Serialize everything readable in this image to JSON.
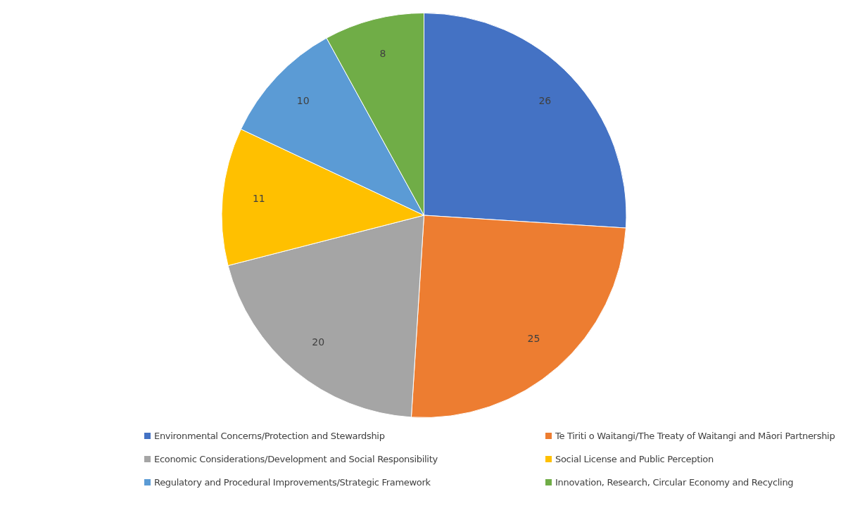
{
  "chart_data": {
    "type": "pie",
    "categories": [
      "Environmental Concerns/Protection and Stewardship",
      "Te Tiriti o Waitangi/The Treaty of Waitangi and Māori Partnership",
      "Economic Considerations/Development and Social Responsibility",
      "Social License and Public Perception",
      "Regulatory and Procedural Improvements/Strategic Framework",
      "Innovation, Research, Circular Economy and Recycling"
    ],
    "values": [
      26,
      25,
      20,
      11,
      10,
      8
    ],
    "colors": [
      "#4472c4",
      "#ed7d31",
      "#a5a5a5",
      "#ffc000",
      "#5b9bd5",
      "#70ad47"
    ],
    "data_labels": true,
    "legend": "bottom"
  }
}
